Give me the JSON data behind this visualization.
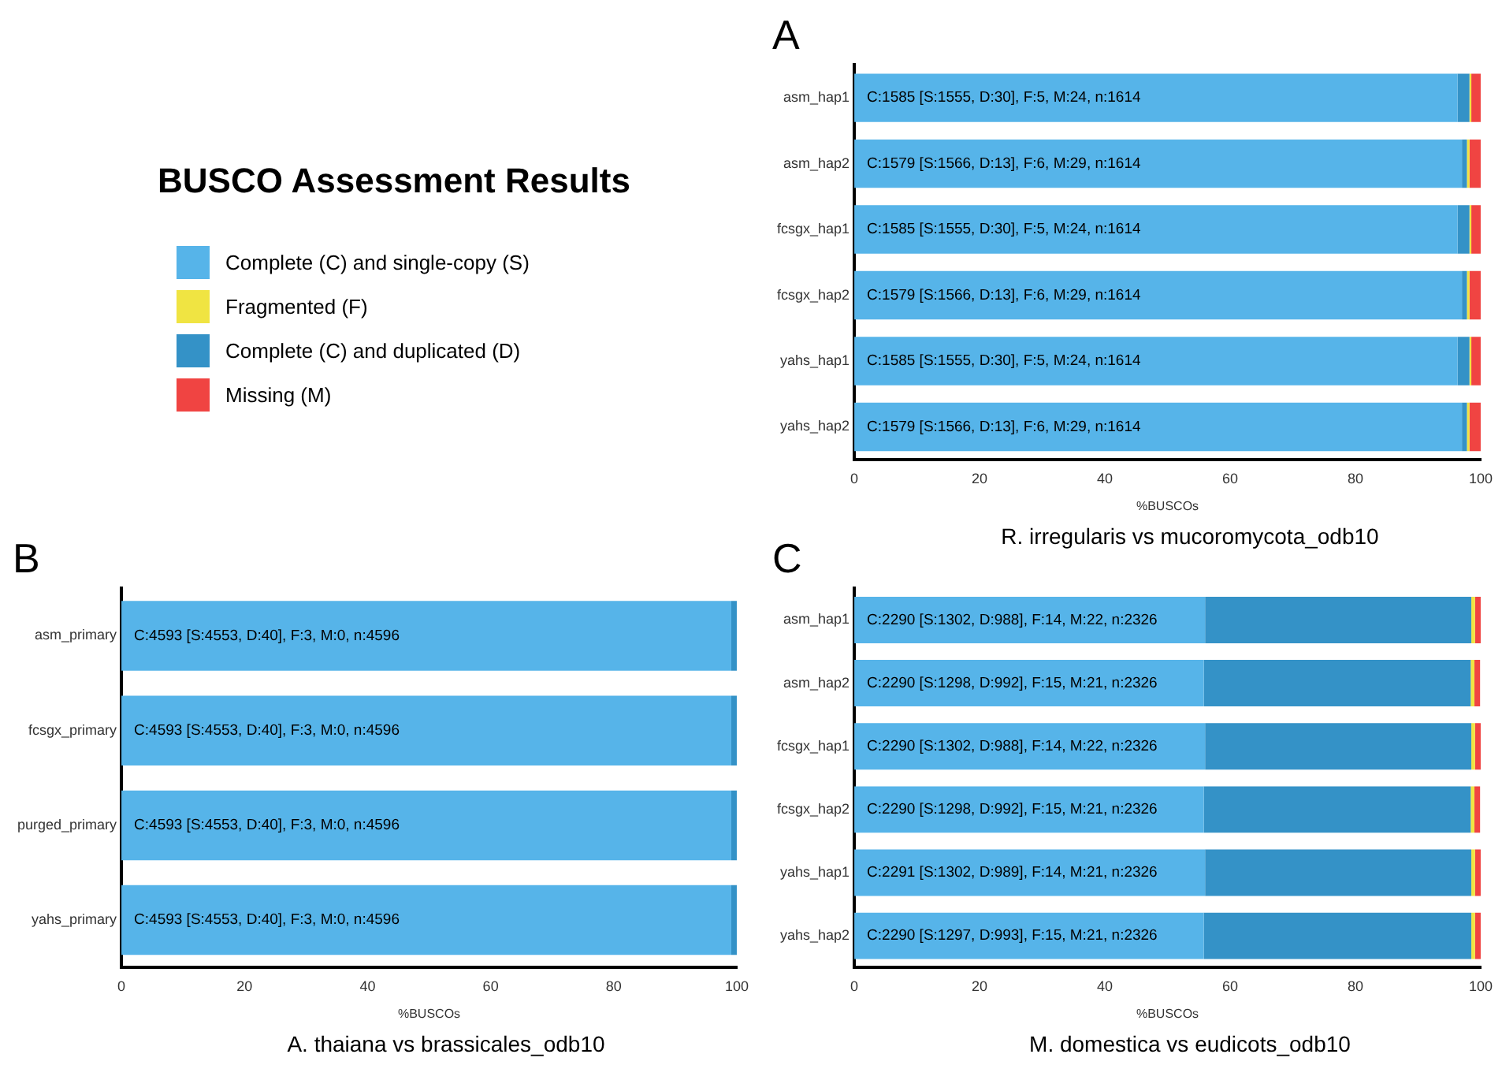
{
  "chart_data": [
    {
      "type": "other",
      "title": "BUSCO Assessment Results",
      "annotations": [
        "Complete (C) and single-copy (S)",
        "Fragmented (F)",
        "Complete (C) and duplicated (D)",
        "Missing (M)"
      ]
    },
    {
      "type": "bar",
      "orientation": "horizontal",
      "stacked": true,
      "title": "A",
      "xlabel": "%BUSCOs",
      "annotations": [
        "R. irregularis vs mucoromycota_odb10"
      ],
      "categories": [
        "asm_hap1",
        "asm_hap2",
        "fcsgx_hap1",
        "fcsgx_hap2",
        "yahs_hap1",
        "yahs_hap2"
      ],
      "xlim": [
        0,
        100
      ],
      "xticks": [
        0,
        20,
        40,
        60,
        80,
        100
      ],
      "grid": false,
      "legend": false,
      "series": [
        {
          "color": "#56b4e9",
          "values": [
            96.3,
            97.0,
            96.3,
            97.0,
            96.3,
            97.0
          ],
          "value_labels": [
            "C:1585 [S:1555, D:30], F:5, M:24, n:1614",
            "C:1579 [S:1566, D:13], F:6, M:29, n:1614",
            "C:1585 [S:1555, D:30], F:5, M:24, n:1614",
            "C:1579 [S:1566, D:13], F:6, M:29, n:1614",
            "C:1585 [S:1555, D:30], F:5, M:24, n:1614",
            "C:1579 [S:1566, D:13], F:6, M:29, n:1614"
          ]
        },
        {
          "color": "#3492c7",
          "values": [
            1.9,
            0.8,
            1.9,
            0.8,
            1.9,
            0.8
          ]
        },
        {
          "color": "#f0e442",
          "values": [
            0.3,
            0.4,
            0.3,
            0.4,
            0.3,
            0.4
          ]
        },
        {
          "color": "#f04442",
          "values": [
            1.5,
            1.8,
            1.5,
            1.8,
            1.5,
            1.8
          ]
        }
      ]
    },
    {
      "type": "bar",
      "orientation": "horizontal",
      "stacked": true,
      "title": "B",
      "xlabel": "%BUSCOs",
      "annotations": [
        "A. thaiana vs brassicales_odb10"
      ],
      "categories": [
        "asm_primary",
        "fcsgx_primary",
        "purged_primary",
        "yahs_primary"
      ],
      "xlim": [
        0,
        100
      ],
      "xticks": [
        0,
        20,
        40,
        60,
        80,
        100
      ],
      "grid": false,
      "legend": false,
      "series": [
        {
          "color": "#56b4e9",
          "values": [
            99.1,
            99.1,
            99.1,
            99.1
          ],
          "value_labels": [
            "C:4593 [S:4553, D:40], F:3, M:0, n:4596",
            "C:4593 [S:4553, D:40], F:3, M:0, n:4596",
            "C:4593 [S:4553, D:40], F:3, M:0, n:4596",
            "C:4593 [S:4553, D:40], F:3, M:0, n:4596"
          ]
        },
        {
          "color": "#3492c7",
          "values": [
            0.9,
            0.9,
            0.9,
            0.9
          ]
        },
        {
          "color": "#f0e442",
          "values": [
            null,
            null,
            null,
            null
          ]
        },
        {
          "color": "#f04442",
          "values": [
            0,
            0,
            0,
            0
          ]
        }
      ]
    },
    {
      "type": "bar",
      "orientation": "horizontal",
      "stacked": true,
      "title": "C",
      "xlabel": "%BUSCOs",
      "annotations": [
        "M. domestica vs eudicots_odb10"
      ],
      "categories": [
        "asm_hap1",
        "asm_hap2",
        "fcsgx_hap1",
        "fcsgx_hap2",
        "yahs_hap1",
        "yahs_hap2"
      ],
      "xlim": [
        0,
        100
      ],
      "xticks": [
        0,
        20,
        40,
        60,
        80,
        100
      ],
      "grid": false,
      "legend": false,
      "series": [
        {
          "color": "#56b4e9",
          "values": [
            56.0,
            55.8,
            56.0,
            55.8,
            56.0,
            55.8
          ],
          "value_labels": [
            "C:2290 [S:1302, D:988], F:14, M:22, n:2326",
            "C:2290 [S:1298, D:992], F:15, M:21, n:2326",
            "C:2290 [S:1302, D:988], F:14, M:22, n:2326",
            "C:2290 [S:1298, D:992], F:15, M:21, n:2326",
            "C:2291 [S:1302, D:989], F:14, M:21, n:2326",
            "C:2290 [S:1297, D:993], F:15, M:21, n:2326"
          ]
        },
        {
          "color": "#3492c7",
          "values": [
            42.5,
            42.6,
            42.5,
            42.6,
            42.5,
            42.7
          ]
        },
        {
          "color": "#f0e442",
          "values": [
            0.6,
            0.6,
            0.6,
            0.6,
            0.6,
            0.6
          ]
        },
        {
          "color": "#f04442",
          "values": [
            0.9,
            0.9,
            0.9,
            0.9,
            0.9,
            0.9
          ]
        }
      ]
    }
  ]
}
